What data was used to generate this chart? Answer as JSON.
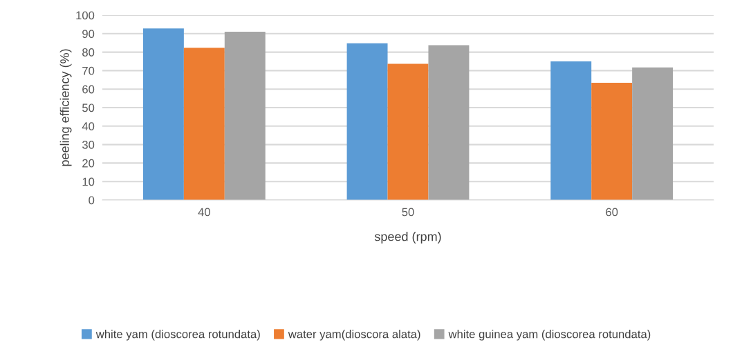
{
  "chart_data": {
    "type": "bar",
    "xlabel": "speed (rpm)",
    "ylabel": "peeling efficiency (%)",
    "categories": [
      "40",
      "50",
      "60"
    ],
    "series": [
      {
        "name": "white yam (dioscorea rotundata)",
        "color": "#5b9bd5",
        "values": [
          92.8,
          84.8,
          75.0
        ]
      },
      {
        "name": "water yam(dioscora alata)",
        "color": "#ed7d31",
        "values": [
          82.4,
          73.7,
          63.4
        ]
      },
      {
        "name": "white guinea yam (dioscorea rotundata)",
        "color": "#a5a5a5",
        "values": [
          91.0,
          83.8,
          71.7
        ]
      }
    ],
    "ylim": [
      0,
      100
    ],
    "yticks": [
      0,
      10,
      20,
      30,
      40,
      50,
      60,
      70,
      80,
      90,
      100
    ],
    "grid": "y",
    "legend": "bottom"
  }
}
